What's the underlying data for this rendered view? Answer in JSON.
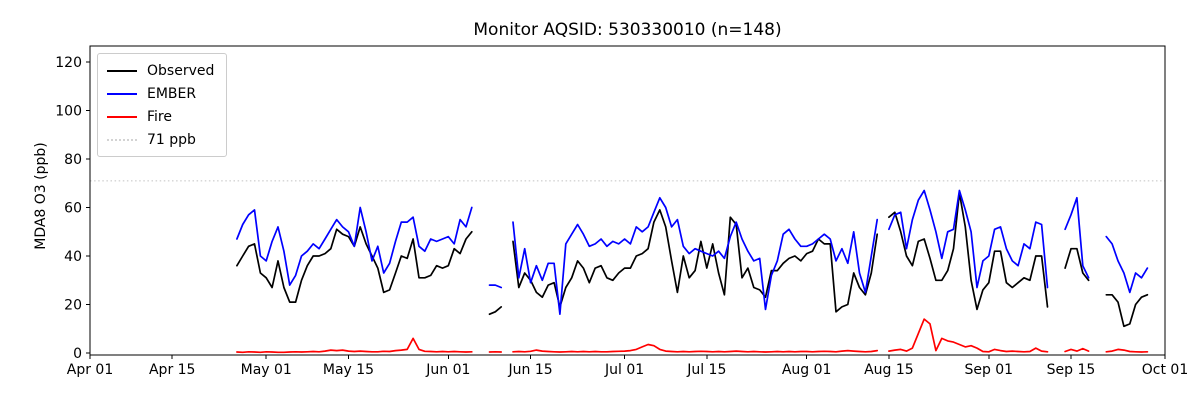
{
  "chart_data": {
    "type": "line",
    "title": "Monitor AQSID: 530330010 (n=148)",
    "xlabel": "",
    "ylabel": "MDA8 O3 (ppb)",
    "ylim": [
      0,
      120
    ],
    "grid": false,
    "y_ticks": [
      0,
      20,
      40,
      60,
      80,
      100,
      120
    ],
    "x_ticks": [
      "Apr 01",
      "Apr 15",
      "May 01",
      "May 15",
      "Jun 01",
      "Jun 15",
      "Jul 01",
      "Jul 15",
      "Aug 01",
      "Aug 15",
      "Sep 01",
      "Sep 15",
      "Oct 01"
    ],
    "threshold": {
      "value": 71,
      "label": "71 ppb",
      "color": "#d3d3d3",
      "style": "dotted"
    },
    "legend": {
      "position": "upper left",
      "entries": [
        {
          "label": "Observed",
          "color": "#000000",
          "style": "solid"
        },
        {
          "label": "EMBER",
          "color": "#0000ff",
          "style": "solid"
        },
        {
          "label": "Fire",
          "color": "#ff0000",
          "style": "solid"
        },
        {
          "label": "71 ppb",
          "color": "#d3d3d3",
          "style": "dotted"
        }
      ]
    },
    "dates": [
      "Apr 26",
      "Apr 27",
      "Apr 28",
      "Apr 29",
      "Apr 30",
      "May 01",
      "May 02",
      "May 03",
      "May 04",
      "May 05",
      "May 06",
      "May 07",
      "May 08",
      "May 09",
      "May 10",
      "May 11",
      "May 12",
      "May 13",
      "May 14",
      "May 15",
      "May 16",
      "May 17",
      "May 18",
      "May 19",
      "May 20",
      "May 21",
      "May 22",
      "May 23",
      "May 24",
      "May 25",
      "May 26",
      "May 27",
      "May 28",
      "May 29",
      "May 30",
      "May 31",
      "Jun 01",
      "Jun 02",
      "Jun 03",
      "Jun 04",
      "Jun 05",
      "Jun 06",
      "Jun 07",
      "Jun 08",
      "Jun 09",
      "Jun 10",
      "Jun 11",
      "Jun 12",
      "Jun 13",
      "Jun 14",
      "Jun 15",
      "Jun 16",
      "Jun 17",
      "Jun 18",
      "Jun 19",
      "Jun 20",
      "Jun 21",
      "Jun 22",
      "Jun 23",
      "Jun 24",
      "Jun 25",
      "Jun 26",
      "Jun 27",
      "Jun 28",
      "Jun 29",
      "Jun 30",
      "Jul 01",
      "Jul 02",
      "Jul 03",
      "Jul 04",
      "Jul 05",
      "Jul 06",
      "Jul 07",
      "Jul 08",
      "Jul 09",
      "Jul 10",
      "Jul 11",
      "Jul 12",
      "Jul 13",
      "Jul 14",
      "Jul 15",
      "Jul 16",
      "Jul 17",
      "Jul 18",
      "Jul 19",
      "Jul 20",
      "Jul 21",
      "Jul 22",
      "Jul 23",
      "Jul 24",
      "Jul 25",
      "Jul 26",
      "Jul 27",
      "Jul 28",
      "Jul 29",
      "Jul 30",
      "Jul 31",
      "Aug 01",
      "Aug 02",
      "Aug 03",
      "Aug 04",
      "Aug 05",
      "Aug 06",
      "Aug 07",
      "Aug 08",
      "Aug 09",
      "Aug 10",
      "Aug 11",
      "Aug 12",
      "Aug 13",
      "Aug 14",
      "Aug 15",
      "Aug 16",
      "Aug 17",
      "Aug 18",
      "Aug 19",
      "Aug 20",
      "Aug 21",
      "Aug 22",
      "Aug 23",
      "Aug 24",
      "Aug 25",
      "Aug 26",
      "Aug 27",
      "Aug 28",
      "Aug 29",
      "Aug 30",
      "Aug 31",
      "Sep 01",
      "Sep 02",
      "Sep 03",
      "Sep 04",
      "Sep 05",
      "Sep 06",
      "Sep 07",
      "Sep 08",
      "Sep 09",
      "Sep 10",
      "Sep 11",
      "Sep 12",
      "Sep 13",
      "Sep 14",
      "Sep 15",
      "Sep 16",
      "Sep 17",
      "Sep 18",
      "Sep 19",
      "Sep 20",
      "Sep 21",
      "Sep 22",
      "Sep 23",
      "Sep 24",
      "Sep 25",
      "Sep 26",
      "Sep 27",
      "Sep 28"
    ],
    "series": [
      {
        "name": "Observed",
        "color": "#000000",
        "values": [
          36,
          40,
          44,
          45,
          33,
          31,
          27,
          38,
          27,
          21,
          21,
          30,
          36,
          40,
          40,
          41,
          43,
          51,
          49,
          48,
          44,
          52,
          45,
          40,
          35,
          25,
          26,
          33,
          40,
          39,
          47,
          31,
          31,
          32,
          36,
          35,
          36,
          43,
          41,
          47,
          50,
          null,
          null,
          16,
          17,
          19,
          null,
          46,
          27,
          33,
          30,
          25,
          23,
          28,
          29,
          19,
          27,
          31,
          38,
          35,
          29,
          35,
          36,
          31,
          30,
          33,
          35,
          35,
          40,
          41,
          43,
          54,
          59,
          52,
          38,
          25,
          40,
          31,
          34,
          46,
          35,
          45,
          33,
          24,
          56,
          53,
          31,
          35,
          27,
          26,
          23,
          34,
          34,
          37,
          39,
          40,
          38,
          41,
          42,
          47,
          45,
          45,
          17,
          19,
          20,
          33,
          27,
          24,
          33,
          49,
          null,
          56,
          58,
          50,
          40,
          36,
          46,
          47,
          39,
          30,
          30,
          34,
          43,
          66,
          52,
          30,
          18,
          26,
          29,
          42,
          42,
          29,
          27,
          29,
          31,
          30,
          40,
          40,
          19,
          null,
          null,
          35,
          43,
          43,
          33,
          30,
          null,
          null,
          24,
          24,
          21,
          11,
          12,
          20,
          23,
          24
        ]
      },
      {
        "name": "EMBER",
        "color": "#0000ff",
        "values": [
          47,
          53,
          57,
          59,
          40,
          38,
          46,
          52,
          42,
          28,
          32,
          40,
          42,
          45,
          43,
          47,
          51,
          55,
          52,
          50,
          44,
          60,
          50,
          38,
          44,
          33,
          37,
          46,
          54,
          54,
          56,
          44,
          42,
          47,
          46,
          47,
          48,
          45,
          55,
          52,
          60,
          null,
          null,
          28,
          28,
          27,
          null,
          54,
          31,
          43,
          29,
          36,
          30,
          37,
          37,
          16,
          45,
          49,
          53,
          49,
          44,
          45,
          47,
          44,
          46,
          45,
          47,
          45,
          52,
          50,
          52,
          58,
          64,
          60,
          52,
          55,
          44,
          41,
          43,
          42,
          41,
          40,
          42,
          39,
          48,
          54,
          47,
          42,
          38,
          39,
          18,
          32,
          38,
          49,
          51,
          47,
          44,
          44,
          45,
          47,
          49,
          47,
          38,
          43,
          37,
          50,
          33,
          25,
          40,
          55,
          null,
          51,
          57,
          58,
          43,
          55,
          63,
          67,
          59,
          50,
          39,
          50,
          51,
          67,
          59,
          50,
          27,
          38,
          40,
          51,
          52,
          43,
          38,
          36,
          45,
          43,
          54,
          53,
          27,
          null,
          null,
          51,
          57,
          64,
          36,
          31,
          null,
          null,
          48,
          45,
          38,
          33,
          25,
          33,
          31,
          35
        ]
      },
      {
        "name": "Fire",
        "color": "#ff0000",
        "values": [
          0.4,
          0.3,
          0.5,
          0.4,
          0.3,
          0.5,
          0.4,
          0.3,
          0.3,
          0.4,
          0.5,
          0.4,
          0.5,
          0.6,
          0.5,
          0.8,
          1.2,
          1.0,
          1.2,
          0.8,
          0.6,
          0.8,
          0.6,
          0.5,
          0.5,
          0.7,
          0.6,
          1.0,
          1.2,
          1.5,
          6.0,
          1.5,
          0.7,
          0.6,
          0.5,
          0.6,
          0.5,
          0.6,
          0.5,
          0.4,
          0.5,
          null,
          null,
          0.4,
          0.5,
          0.4,
          null,
          0.5,
          0.6,
          0.5,
          0.7,
          1.2,
          0.8,
          0.6,
          0.5,
          0.4,
          0.5,
          0.6,
          0.5,
          0.6,
          0.5,
          0.6,
          0.5,
          0.5,
          0.6,
          0.7,
          0.8,
          1.0,
          1.5,
          2.5,
          3.5,
          3.0,
          1.5,
          0.8,
          0.6,
          0.5,
          0.6,
          0.5,
          0.6,
          0.7,
          0.6,
          0.5,
          0.6,
          0.5,
          0.6,
          0.8,
          0.6,
          0.5,
          0.6,
          0.5,
          0.4,
          0.5,
          0.6,
          0.5,
          0.6,
          0.5,
          0.6,
          0.6,
          0.5,
          0.6,
          0.7,
          0.6,
          0.5,
          0.8,
          1.0,
          0.8,
          0.6,
          0.5,
          0.6,
          1.0,
          null,
          0.8,
          1.2,
          1.5,
          0.8,
          2.0,
          8.0,
          14.0,
          12.0,
          1.0,
          6.0,
          5.0,
          4.5,
          3.5,
          2.5,
          3.0,
          2.0,
          0.6,
          0.5,
          1.5,
          1.0,
          0.6,
          0.8,
          0.6,
          0.5,
          0.6,
          2.0,
          0.8,
          0.5,
          null,
          null,
          0.6,
          1.5,
          0.8,
          1.8,
          0.8,
          null,
          null,
          0.5,
          0.8,
          1.5,
          1.2,
          0.6,
          0.5,
          0.4,
          0.5
        ]
      }
    ]
  }
}
